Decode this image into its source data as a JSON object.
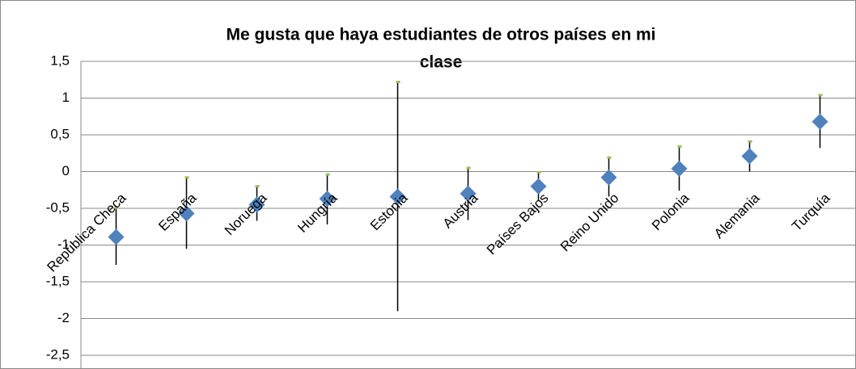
{
  "chart_data": {
    "type": "error-scatter",
    "title": [
      "Me gusta  que haya estudiantes de otros países en mi",
      "clase"
    ],
    "categories": [
      "República Checa",
      "España",
      "Noruega",
      "Hungría",
      "Estonia",
      "Austria",
      "Países Bajos",
      "Reino Unido",
      "Polonia",
      "Alemania",
      "Turquía"
    ],
    "values": [
      -0.89,
      -0.57,
      -0.45,
      -0.37,
      -0.34,
      -0.3,
      -0.2,
      -0.08,
      0.04,
      0.21,
      0.68
    ],
    "high": [
      -0.49,
      -0.08,
      -0.2,
      -0.04,
      1.22,
      0.05,
      -0.01,
      0.19,
      0.34,
      0.41,
      1.04
    ],
    "low": [
      -1.27,
      -1.05,
      -0.67,
      -0.72,
      -1.9,
      -0.66,
      -0.4,
      -0.34,
      -0.26,
      0.0,
      0.32
    ],
    "color": "#4f81bd",
    "high_color": "#9bbb59",
    "ylim": [
      -2.5,
      1.5
    ],
    "yticks": [
      {
        "value": 1.5,
        "label": "1,5"
      },
      1,
      {
        "value": 0.5,
        "label": "0,5"
      },
      0,
      {
        "value": -0.5,
        "label": "-0,5"
      },
      -1,
      {
        "value": -1.5,
        "label": "-1,5"
      },
      -2,
      {
        "value": -2.5,
        "label": "-2,5"
      }
    ],
    "grid": true
  }
}
